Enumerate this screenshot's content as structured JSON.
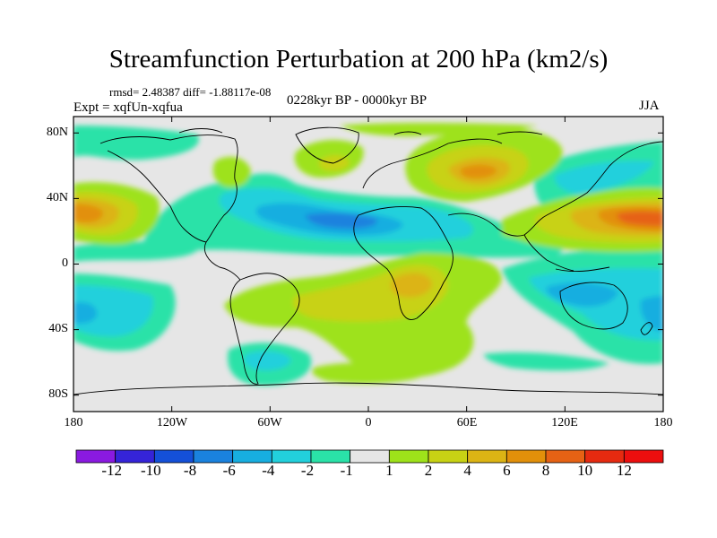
{
  "title": "Streamfunction Perturbation at 200 hPa (km2/s)",
  "stats": "rmsd= 2.48387 diff= -1.88117e-08",
  "expt": "Expt = xqfUn-xqfua",
  "period": "0228kyr BP - 0000kyr BP",
  "season": "JJA",
  "chart_data": {
    "type": "heatmap",
    "title": "Streamfunction Perturbation at 200 hPa (km2/s)",
    "variable": "streamfunction perturbation",
    "units": "km2/s",
    "level": "200 hPa",
    "season": "JJA",
    "xlabel": "",
    "ylabel": "",
    "xlim": [
      -180,
      180
    ],
    "ylim": [
      -90,
      90
    ],
    "x_ticks": [
      "180",
      "120W",
      "60W",
      "0",
      "60E",
      "120E",
      "180"
    ],
    "y_ticks": [
      "80N",
      "40N",
      "0",
      "40S",
      "80S"
    ],
    "colorbar": {
      "labels": [
        "-12",
        "-10",
        "-8",
        "-6",
        "-4",
        "-2",
        "-1",
        "1",
        "2",
        "4",
        "6",
        "8",
        "10",
        "12"
      ],
      "colors": [
        "#8a1ae0",
        "#3524d8",
        "#1450d8",
        "#1a82de",
        "#17aee0",
        "#22d0dc",
        "#2ae2a8",
        "#e6e6e6",
        "#9ee21a",
        "#c8d214",
        "#dcb414",
        "#e2900a",
        "#e66214",
        "#e62a10",
        "#ec0e0e"
      ]
    },
    "features": [
      {
        "name": "positive max",
        "lon": 170,
        "lat": 33,
        "value": 10
      },
      {
        "name": "positive max",
        "lon": -170,
        "lat": 33,
        "value": 8
      },
      {
        "name": "positive max",
        "lon": 55,
        "lat": 48,
        "value": 6
      },
      {
        "name": "positive max",
        "lon": 28,
        "lat": -12,
        "value": 4
      },
      {
        "name": "positive",
        "lon": -15,
        "lat": -20,
        "value": 2
      },
      {
        "name": "negative min",
        "lon": 0,
        "lat": 32,
        "value": -6
      },
      {
        "name": "negative min",
        "lon": -55,
        "lat": 35,
        "value": -4
      },
      {
        "name": "negative min",
        "lon": 110,
        "lat": -25,
        "value": -4
      },
      {
        "name": "negative min",
        "lon": -175,
        "lat": -35,
        "value": -4
      },
      {
        "name": "negative",
        "lon": -50,
        "lat": -55,
        "value": -2
      }
    ]
  }
}
